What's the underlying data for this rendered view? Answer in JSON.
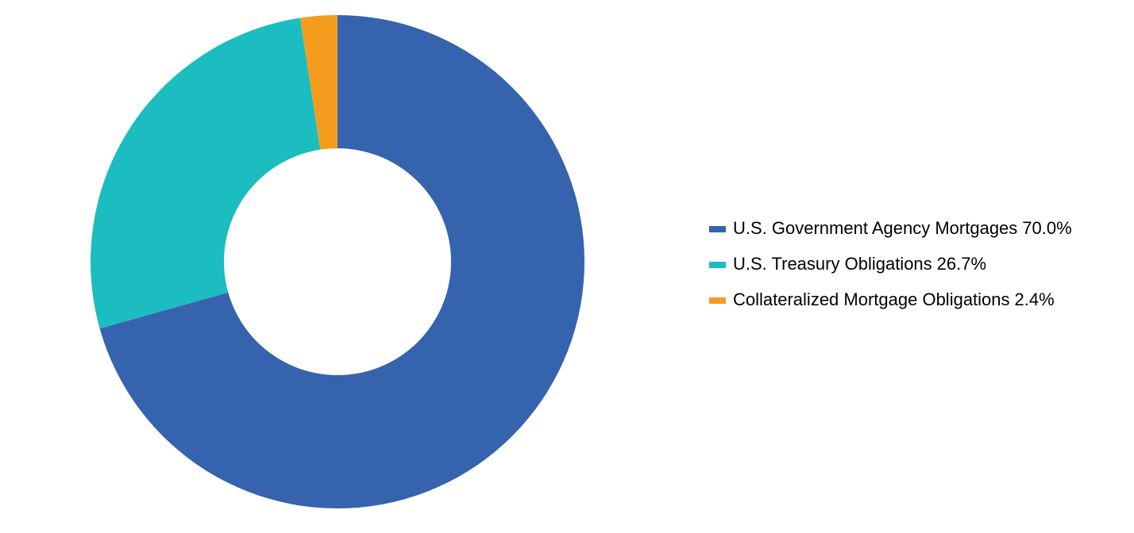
{
  "chart_data": {
    "type": "donut",
    "categories": [
      "U.S. Government Agency Mortgages",
      "U.S. Treasury Obligations",
      "Collateralized Mortgage Obligations"
    ],
    "values": [
      70.0,
      26.7,
      2.4
    ],
    "value_labels": [
      "70.0%",
      "26.7%",
      "2.4%"
    ],
    "colors": [
      "#3563ae",
      "#1bbdc1",
      "#f59c1f"
    ],
    "legend": "right"
  }
}
